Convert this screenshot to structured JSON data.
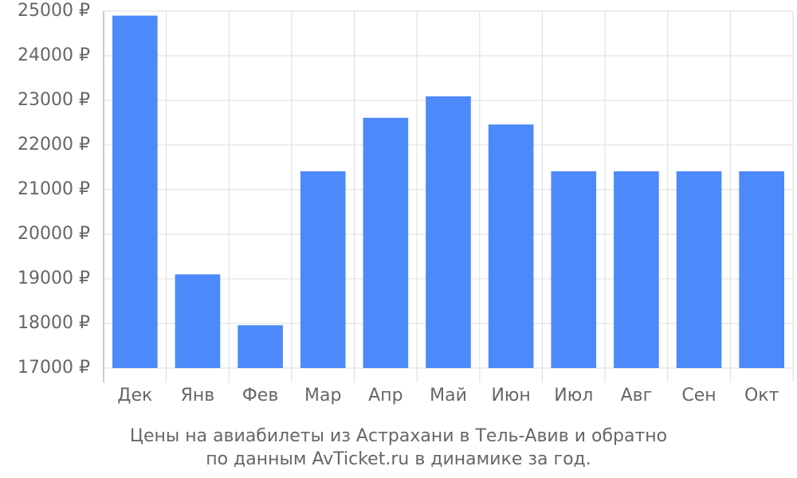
{
  "chart_data": {
    "type": "bar",
    "title": [
      "Цены на авиабилеты из Астрахани в Тель-Авив и обратно",
      "по данным AvTicket.ru в динамике за год."
    ],
    "categories": [
      "Дек",
      "Янв",
      "Фев",
      "Мар",
      "Апр",
      "Май",
      "Июн",
      "Июл",
      "Авг",
      "Сен",
      "Окт"
    ],
    "values": [
      24900,
      19100,
      17960,
      21410,
      22610,
      23090,
      22460,
      21410,
      21410,
      21410,
      21410
    ],
    "color": "#4c89fb",
    "ylim": [
      17000,
      25000
    ],
    "yticks": [
      {
        "value": 17000,
        "label": "17000 ₽"
      },
      {
        "value": 18000,
        "label": "18000 ₽"
      },
      {
        "value": 19000,
        "label": "19000 ₽"
      },
      {
        "value": 20000,
        "label": "20000 ₽"
      },
      {
        "value": 21000,
        "label": "21000 ₽"
      },
      {
        "value": 22000,
        "label": "22000 ₽"
      },
      {
        "value": 23000,
        "label": "23000 ₽"
      },
      {
        "value": 24000,
        "label": "24000 ₽"
      },
      {
        "value": 25000,
        "label": "25000 ₽"
      }
    ],
    "grid": true
  }
}
